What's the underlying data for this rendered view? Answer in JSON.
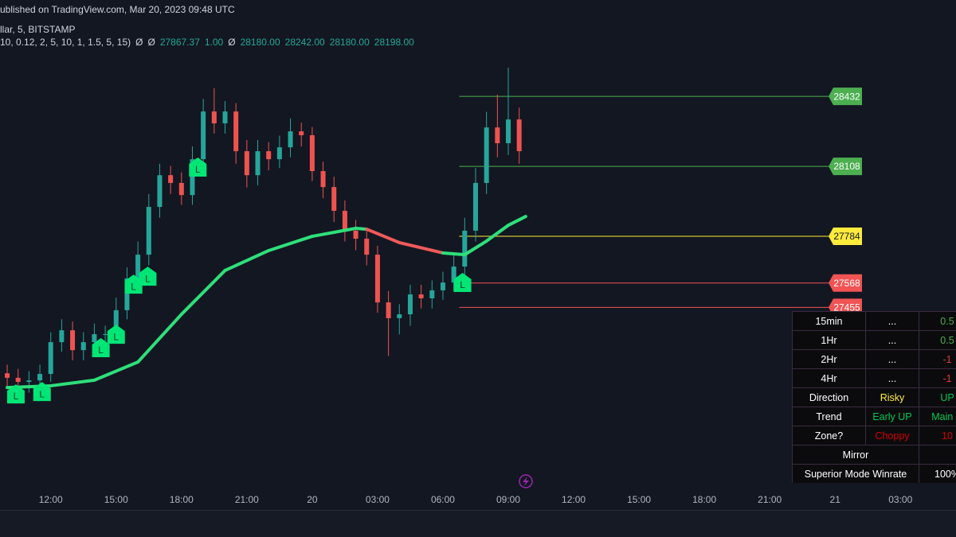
{
  "header": {
    "published": "ublished on TradingView.com, Mar 20, 2023 09:48 UTC",
    "symbol": "llar, 5, BITSTAMP",
    "indicator": [
      {
        "text": "10, 0.12, 2, 5, 10, 1, 1.5, 5, 15)",
        "color": "#d1d4dc"
      },
      {
        "text": "Ø",
        "color": "#d1d4dc"
      },
      {
        "text": "Ø",
        "color": "#d1d4dc"
      },
      {
        "text": "27867.37",
        "color": "#22ab94"
      },
      {
        "text": "1.00",
        "color": "#22ab94"
      },
      {
        "text": "Ø",
        "color": "#d1d4dc"
      },
      {
        "text": "28180.00",
        "color": "#22ab94"
      },
      {
        "text": "28242.00",
        "color": "#22ab94"
      },
      {
        "text": "28180.00",
        "color": "#22ab94"
      },
      {
        "text": "28198.00",
        "color": "#22ab94"
      }
    ]
  },
  "chart": {
    "type": "candlestick",
    "xlim": [
      -0.66,
      87.1
    ],
    "ylim": [
      26613,
      28878
    ],
    "xticks": [
      {
        "value": 4,
        "label": "12:00"
      },
      {
        "value": 10,
        "label": "15:00"
      },
      {
        "value": 16,
        "label": "18:00"
      },
      {
        "value": 22,
        "label": "21:00"
      },
      {
        "value": 28,
        "label": "20"
      },
      {
        "value": 34,
        "label": "03:00"
      },
      {
        "value": 40,
        "label": "06:00"
      },
      {
        "value": 46,
        "label": "09:00"
      },
      {
        "value": 52,
        "label": "12:00"
      },
      {
        "value": 58,
        "label": "15:00"
      },
      {
        "value": 64,
        "label": "18:00"
      },
      {
        "value": 70,
        "label": "21:00"
      },
      {
        "value": 76,
        "label": "21"
      },
      {
        "value": 82,
        "label": "03:00"
      }
    ],
    "up_color": "#26a69a",
    "down_color": "#ef5350",
    "open": [
      27150,
      27129,
      27110,
      27117,
      27147,
      27294,
      27349,
      27257,
      27294,
      27331,
      27331,
      27442,
      27589,
      27699,
      27920,
      28067,
      28031,
      27975,
      28141,
      28362,
      28307,
      28362,
      28178,
      28067,
      28178,
      28141,
      28196,
      28270,
      28252,
      28086,
      28012,
      27902,
      27810,
      27773,
      27699,
      27478,
      27405,
      27423,
      27515,
      27497,
      27534,
      27570,
      27644,
      27810,
      28031,
      28288,
      28215,
      28325
    ],
    "high": [
      27190,
      27170,
      27160,
      27190,
      27340,
      27400,
      27390,
      27340,
      27380,
      27370,
      27500,
      27640,
      27760,
      27980,
      28120,
      28110,
      28080,
      28200,
      28420,
      28470,
      28410,
      28400,
      28230,
      28230,
      28220,
      28250,
      28330,
      28310,
      28290,
      28130,
      28060,
      27950,
      27860,
      27820,
      27740,
      27530,
      27470,
      27560,
      27560,
      27580,
      27620,
      27700,
      27870,
      28100,
      28360,
      28440,
      28565,
      28380
    ],
    "low": [
      27090,
      27070,
      27060,
      27080,
      27110,
      27250,
      27210,
      27210,
      27250,
      27280,
      27290,
      27400,
      27540,
      27650,
      27870,
      27980,
      27930,
      27930,
      28090,
      28260,
      28260,
      28120,
      28010,
      28020,
      28090,
      28100,
      28150,
      28200,
      28040,
      27960,
      27850,
      27760,
      27720,
      27650,
      27430,
      27230,
      27330,
      27370,
      27450,
      27450,
      27490,
      27530,
      27600,
      27760,
      27980,
      28150,
      28160,
      28120
    ],
    "close": [
      27129,
      27110,
      27117,
      27147,
      27294,
      27349,
      27257,
      27294,
      27331,
      27331,
      27442,
      27589,
      27699,
      27920,
      28067,
      28031,
      27975,
      28141,
      28362,
      28307,
      28362,
      28178,
      28067,
      28178,
      28141,
      28196,
      28270,
      28252,
      28086,
      28012,
      27902,
      27810,
      27773,
      27699,
      27478,
      27405,
      27423,
      27515,
      27497,
      27534,
      27570,
      27644,
      27810,
      28031,
      28288,
      28215,
      28325,
      28178
    ],
    "ma": {
      "x": [
        0,
        4,
        8,
        12,
        16,
        20,
        24,
        28,
        32,
        33,
        36,
        40,
        42,
        44,
        46,
        47.6
      ],
      "values": [
        27084,
        27092,
        27118,
        27202,
        27423,
        27626,
        27718,
        27784,
        27821,
        27817,
        27755,
        27707,
        27699,
        27762,
        27835,
        27876
      ],
      "colors": [
        "#2ee07a",
        "#2ee07a",
        "#2ee07a",
        "#2ee07a",
        "#2ee07a",
        "#2ee07a",
        "#2ee07a",
        "#2ee07a",
        "#2ee07a",
        "#f05a5a",
        "#f05a5a",
        "#2ee07a",
        "#2ee07a",
        "#2ee07a",
        "#2ee07a"
      ]
    },
    "levels": [
      {
        "value": 28432,
        "color": "#4caf50"
      },
      {
        "value": 28108,
        "color": "#4caf50"
      },
      {
        "value": 27784,
        "color": "#ffeb3b"
      },
      {
        "value": 27568,
        "color": "#f05454"
      },
      {
        "value": 27455,
        "color": "#f05454"
      }
    ],
    "signals": [
      {
        "x": 0.8,
        "price": 27051,
        "label": "L"
      },
      {
        "x": 3.2,
        "price": 27062,
        "label": "L"
      },
      {
        "x": 8.6,
        "price": 27265,
        "label": "L"
      },
      {
        "x": 10,
        "price": 27327,
        "label": "L"
      },
      {
        "x": 11.6,
        "price": 27559,
        "label": "L"
      },
      {
        "x": 12.9,
        "price": 27596,
        "label": "L"
      },
      {
        "x": 17.5,
        "price": 28101,
        "label": "L"
      },
      {
        "x": 41.8,
        "price": 27567,
        "label": "L"
      }
    ]
  },
  "table": {
    "rows": [
      [
        {
          "text": "15min",
          "color": "#ffffff"
        },
        {
          "text": "...",
          "color": "#ffffff"
        },
        {
          "text": "0.5",
          "color": "#4caf50"
        }
      ],
      [
        {
          "text": "1Hr",
          "color": "#ffffff"
        },
        {
          "text": "...",
          "color": "#ffffff"
        },
        {
          "text": "0.5",
          "color": "#4caf50"
        }
      ],
      [
        {
          "text": "2Hr",
          "color": "#ffffff"
        },
        {
          "text": "...",
          "color": "#ffffff"
        },
        {
          "text": "-1",
          "color": "#e53935"
        }
      ],
      [
        {
          "text": "4Hr",
          "color": "#ffffff"
        },
        {
          "text": "...",
          "color": "#ffffff"
        },
        {
          "text": "-1",
          "color": "#e53935"
        }
      ],
      [
        {
          "text": "Direction",
          "color": "#ffffff"
        },
        {
          "text": "Risky",
          "color": "#ffeb3b"
        },
        {
          "text": "UP",
          "color": "#00c853"
        }
      ],
      [
        {
          "text": "Trend",
          "color": "#ffffff"
        },
        {
          "text": "Early UP",
          "color": "#00c853"
        },
        {
          "text": "Main U",
          "color": "#00c853"
        }
      ],
      [
        {
          "text": "Zone?",
          "color": "#ffffff"
        },
        {
          "text": "Choppy",
          "color": "#d50000"
        },
        {
          "text": "10",
          "color": "#d50000"
        }
      ],
      [
        {
          "text": "Mirror",
          "color": "#ffffff",
          "span": 2
        }
      ],
      [
        {
          "text": "Superior Mode Winrate",
          "color": "#ffffff",
          "span": 2
        },
        {
          "text": "100%",
          "color": "#ffffff"
        }
      ]
    ]
  }
}
